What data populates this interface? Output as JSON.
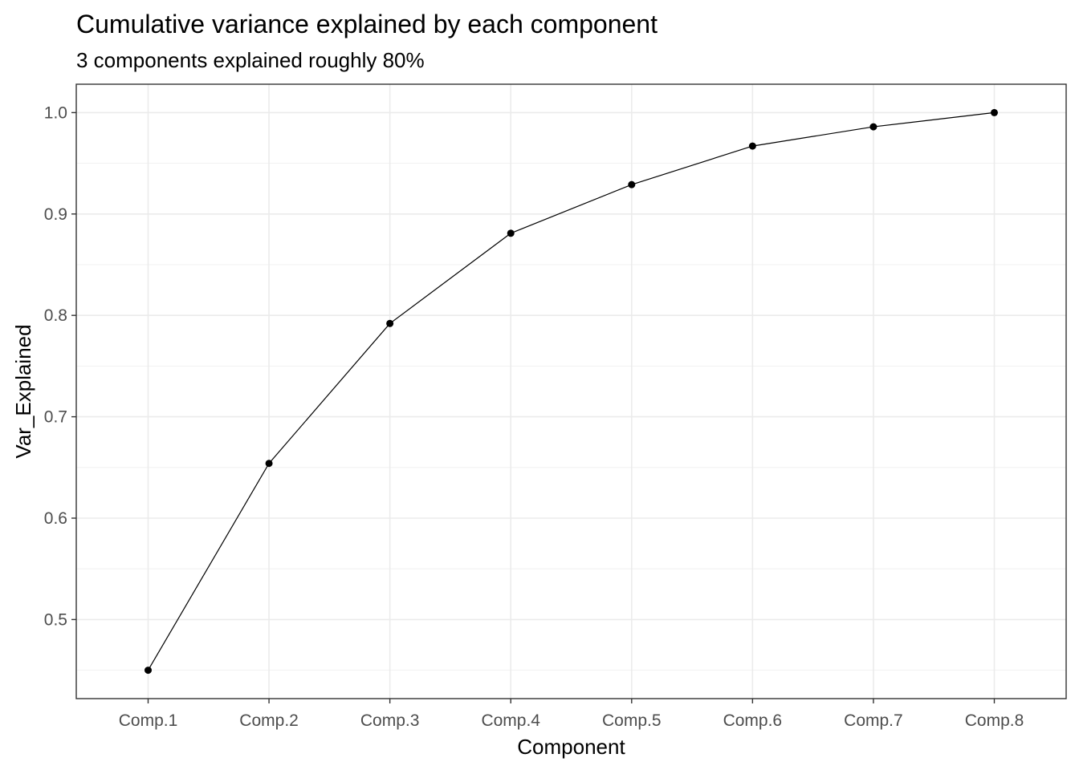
{
  "chart_data": {
    "type": "line",
    "title": "Cumulative variance explained by each component",
    "subtitle": "3 components explained roughly 80%",
    "xlabel": "Component",
    "ylabel": "Var_Explained",
    "categories": [
      "Comp.1",
      "Comp.2",
      "Comp.3",
      "Comp.4",
      "Comp.5",
      "Comp.6",
      "Comp.7",
      "Comp.8"
    ],
    "series": [
      {
        "values": [
          0.45,
          0.654,
          0.792,
          0.881,
          0.929,
          0.967,
          0.986,
          1.0
        ]
      }
    ],
    "ylim": [
      0.422,
      1.028
    ],
    "yticks": [
      0.5,
      0.6,
      0.7,
      0.8,
      0.9,
      1.0
    ],
    "ytick_labels": [
      "0.5",
      "0.6",
      "0.7",
      "0.8",
      "0.9",
      "1.0"
    ],
    "grid": true,
    "markers": true,
    "colors": {
      "line": "#000000",
      "point": "#000000",
      "panel_border": "#333333",
      "grid_major": "#ebebeb",
      "grid_minor": "#f2f2f2",
      "tick_label": "#4d4d4d"
    }
  }
}
